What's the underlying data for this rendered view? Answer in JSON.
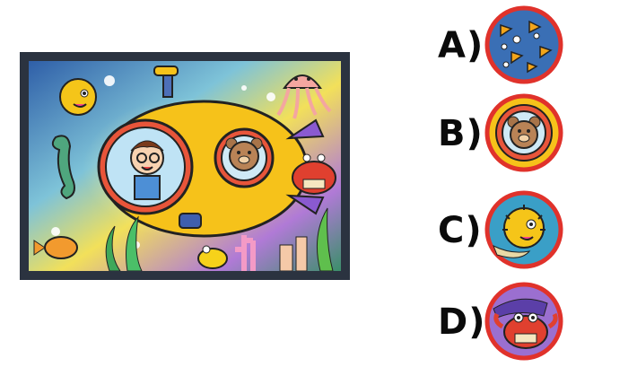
{
  "options": [
    {
      "label": "A)",
      "icon": "fish-pattern-icon"
    },
    {
      "label": "B)",
      "icon": "bear-in-porthole-icon"
    },
    {
      "label": "C)",
      "icon": "pufferfish-icon"
    },
    {
      "label": "D)",
      "icon": "crab-icon"
    }
  ],
  "colors": {
    "frame": "#2b3340",
    "circle_border": "#e0322b",
    "submarine": "#f6c21a",
    "sea_blue": "#3a6fb5",
    "sea_purple": "#9b6fd0"
  }
}
